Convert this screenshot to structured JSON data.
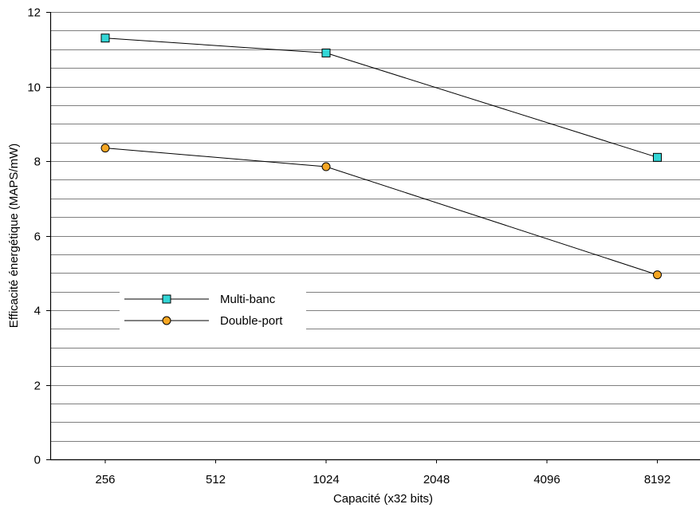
{
  "chart_data": {
    "type": "line",
    "xlabel": "Capacité (x32 bits)",
    "ylabel": "Efficacité énergétique (MAPS/mW)",
    "categories": [
      "256",
      "512",
      "1024",
      "2048",
      "4096",
      "8192"
    ],
    "ylim": [
      0,
      12
    ],
    "yticks": [
      0,
      2,
      4,
      6,
      8,
      10,
      12
    ],
    "grid": "horizontal, every 0.5",
    "legend_position": "lower-left",
    "series": [
      {
        "name": "Multi-banc",
        "marker": "square",
        "color": "#33d6d6",
        "points": [
          {
            "category": "256",
            "value": 11.3
          },
          {
            "category": "1024",
            "value": 10.9
          },
          {
            "category": "8192",
            "value": 8.1
          }
        ]
      },
      {
        "name": "Double-port",
        "marker": "circle",
        "color": "#f5a623",
        "points": [
          {
            "category": "256",
            "value": 8.35
          },
          {
            "category": "1024",
            "value": 7.85
          },
          {
            "category": "8192",
            "value": 4.95
          }
        ]
      }
    ]
  }
}
